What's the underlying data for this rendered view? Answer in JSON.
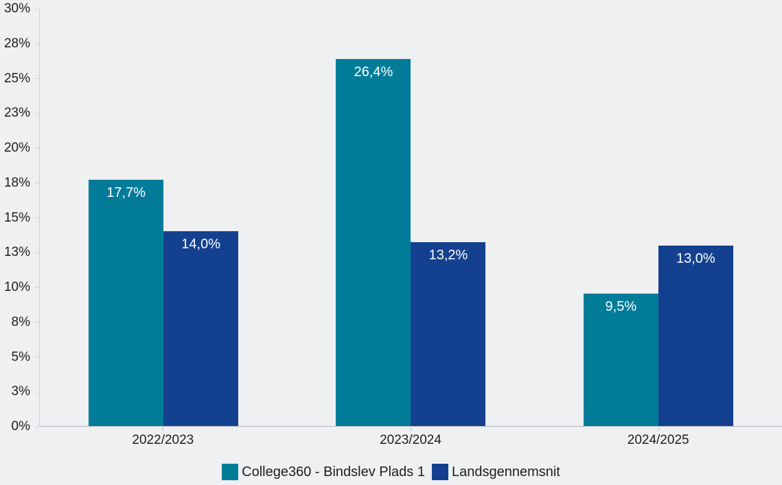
{
  "chart_data": {
    "type": "bar",
    "title": "",
    "xlabel": "",
    "ylabel": "",
    "categories": [
      "2022/2023",
      "2023/2024",
      "2024/2025"
    ],
    "series": [
      {
        "name": "College360 - Bindslev Plads 1",
        "color": "#007C99",
        "values": [
          17.7,
          26.4,
          9.5
        ],
        "labels": [
          "17,7%",
          "26,4%",
          "9,5%"
        ]
      },
      {
        "name": "Landsgennemsnit",
        "color": "#14418F",
        "values": [
          14.0,
          13.2,
          13.0
        ],
        "labels": [
          "14,0%",
          "13,2%",
          "13,0%"
        ]
      }
    ],
    "ylim": [
      0,
      30
    ],
    "y_ticks": [
      {
        "value": 0,
        "label": "0%"
      },
      {
        "value": 2.5,
        "label": "3%"
      },
      {
        "value": 5,
        "label": "5%"
      },
      {
        "value": 7.5,
        "label": "8%"
      },
      {
        "value": 10,
        "label": "10%"
      },
      {
        "value": 12.5,
        "label": "13%"
      },
      {
        "value": 15,
        "label": "15%"
      },
      {
        "value": 17.5,
        "label": "18%"
      },
      {
        "value": 20,
        "label": "20%"
      },
      {
        "value": 22.5,
        "label": "23%"
      },
      {
        "value": 25,
        "label": "25%"
      },
      {
        "value": 27.5,
        "label": "28%"
      },
      {
        "value": 30,
        "label": "30%"
      }
    ],
    "grid": false,
    "legend_position": "bottom",
    "colors": {
      "background": "#EFF0F1",
      "value_label": "#FFFFFF",
      "axis_text": "#1D1D1D",
      "axis_line_y": "#CDD1D6",
      "axis_line_x": "#AEB6C0"
    }
  }
}
